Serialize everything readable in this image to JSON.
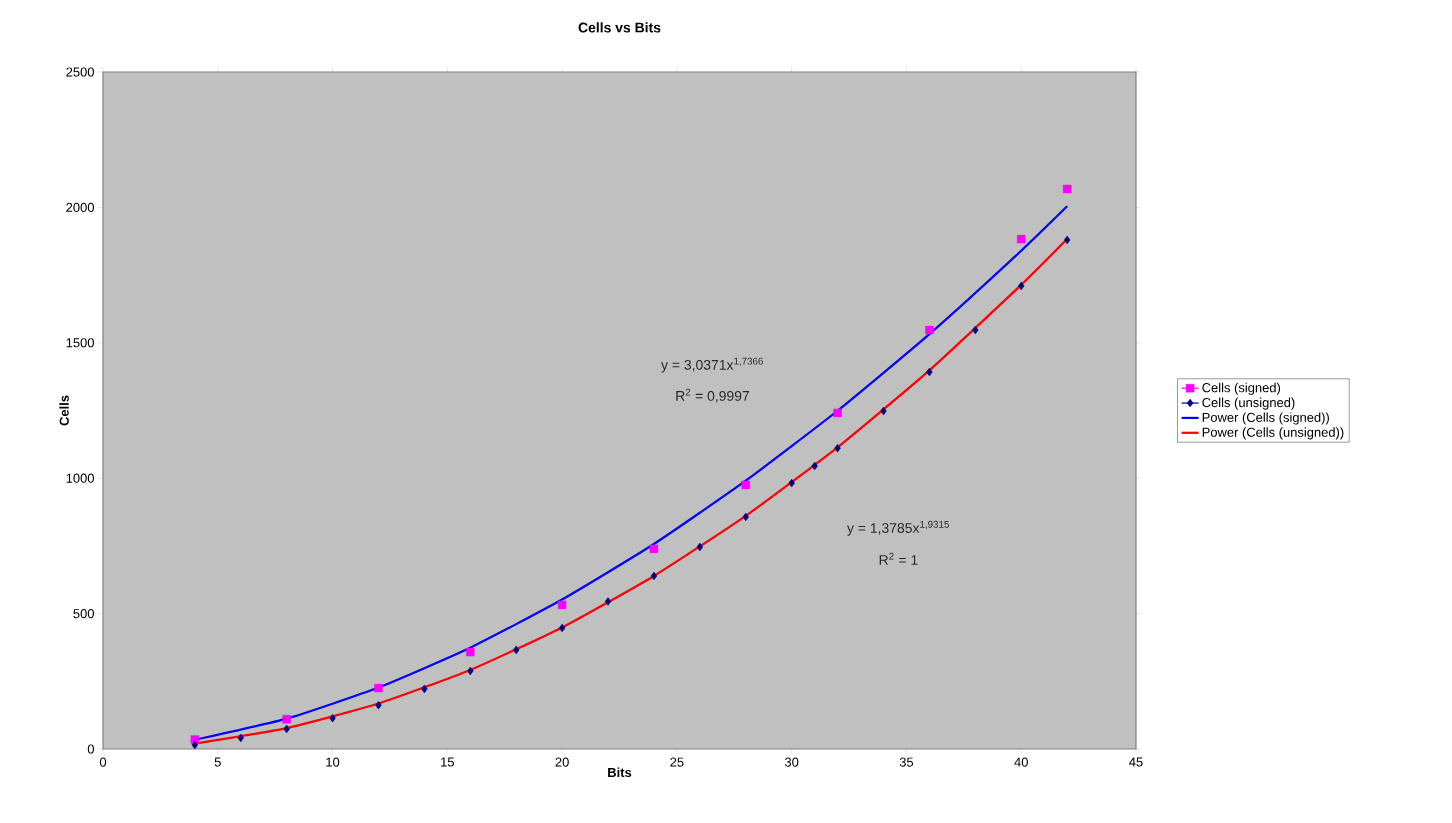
{
  "chart_data": {
    "type": "scatter",
    "title": "Cells vs Bits",
    "xlabel": "Bits",
    "ylabel": "Cells",
    "xlim": [
      0,
      45
    ],
    "xticks": [
      0,
      5,
      10,
      15,
      20,
      25,
      30,
      35,
      40,
      45
    ],
    "ylim": [
      0,
      2500
    ],
    "yticks": [
      0,
      500,
      1000,
      1500,
      2000,
      2500
    ],
    "grid": false,
    "legend": "right",
    "series": [
      {
        "name": "Cells (signed)",
        "marker": "square",
        "color": "#ff00ff",
        "x": [
          4,
          8,
          12,
          16,
          20,
          24,
          28,
          32,
          36,
          40,
          42
        ],
        "values": [
          35,
          110,
          225,
          358,
          532,
          739,
          975,
          1241,
          1547,
          1883,
          2068
        ]
      },
      {
        "name": "Cells (unsigned)",
        "marker": "diamond",
        "color": "#000080",
        "x": [
          4,
          6,
          8,
          10,
          12,
          14,
          16,
          18,
          20,
          22,
          24,
          26,
          28,
          30,
          31,
          32,
          34,
          36,
          38,
          40,
          42
        ],
        "values": [
          15,
          41,
          74,
          114,
          162,
          222,
          288,
          366,
          447,
          545,
          639,
          746,
          857,
          982,
          1045,
          1111,
          1248,
          1392,
          1547,
          1710,
          1880
        ]
      },
      {
        "name": "Power (Cells (signed))",
        "type": "line",
        "marker": "none",
        "color": "#0000ff",
        "x": [
          4,
          8,
          12,
          16,
          20,
          24,
          28,
          32,
          36,
          40,
          42
        ],
        "values": [
          34,
          112,
          227,
          374,
          552,
          757,
          991,
          1249,
          1532,
          1840,
          2004
        ]
      },
      {
        "name": "Power (Cells (unsigned))",
        "type": "line",
        "marker": "none",
        "color": "#ff0000",
        "x": [
          4,
          8,
          12,
          16,
          20,
          24,
          28,
          32,
          36,
          40,
          42
        ],
        "values": [
          20,
          77,
          168,
          292,
          449,
          639,
          861,
          1114,
          1398,
          1714,
          1883
        ]
      }
    ],
    "annotations": [
      "y = 3,0371x$^{1,7366}$",
      "R$^{2}$ = 0,9997",
      "y = 1,3785x$^{1,9315}$",
      "R$^{2}$ = 1"
    ]
  }
}
